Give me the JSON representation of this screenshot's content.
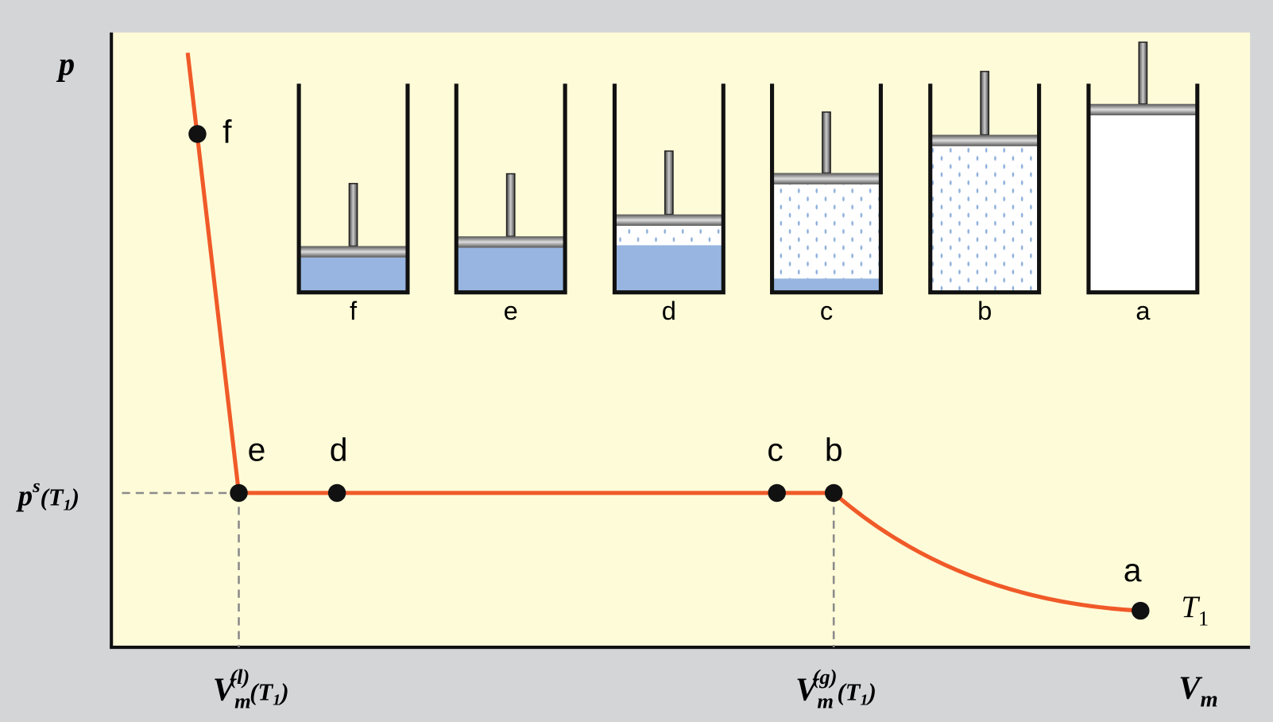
{
  "axes": {
    "y_label": "p",
    "x_label": {
      "main": "V",
      "sub": "m"
    }
  },
  "saturation_pressure": {
    "symbol": "p",
    "sup": "s",
    "arg": "(T",
    "arg_sub": "1",
    "close": ")"
  },
  "liquid_volume": {
    "symbol": "V",
    "sub": "m",
    "sup": "(l)",
    "arg": "(T",
    "arg_sub": "1",
    "close": ")"
  },
  "gas_volume": {
    "symbol": "V",
    "sub": "m",
    "sup": "(g)",
    "arg": "(T",
    "arg_sub": "1",
    "close": ")"
  },
  "isotherm": {
    "label": "T",
    "label_sub": "1"
  },
  "points": [
    {
      "label": "f"
    },
    {
      "label": "e"
    },
    {
      "label": "d"
    },
    {
      "label": "c"
    },
    {
      "label": "b"
    },
    {
      "label": "a"
    }
  ],
  "cylinders": [
    {
      "label": "f"
    },
    {
      "label": "e"
    },
    {
      "label": "d"
    },
    {
      "label": "c"
    },
    {
      "label": "b"
    },
    {
      "label": "a"
    }
  ]
}
